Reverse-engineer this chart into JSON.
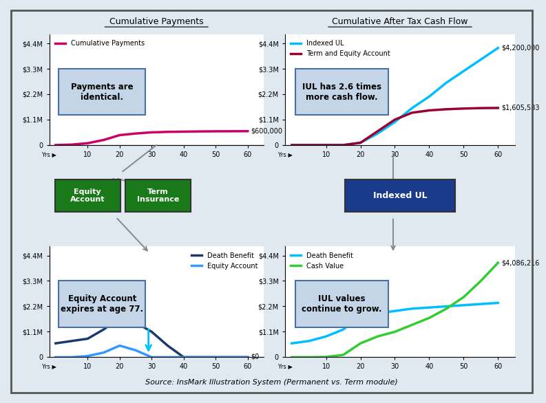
{
  "fig_width": 7.69,
  "fig_height": 5.66,
  "background_color": "#e0e8f0",
  "top_left_title": "Cumulative Payments",
  "top_right_title": "Cumulative After Tax Cash Flow",
  "bottom_source": "Source: InsMark Illustration System (Permanent vs. Term module)",
  "cum_pay_x": [
    0,
    5,
    10,
    15,
    20,
    25,
    30,
    35,
    40,
    45,
    50,
    55,
    60
  ],
  "cum_pay_y": [
    0,
    20000,
    80000,
    220000,
    430000,
    500000,
    550000,
    570000,
    580000,
    590000,
    595000,
    598000,
    600000
  ],
  "cum_pay_color": "#cc0066",
  "cum_pay_label": "Cumulative Payments",
  "cum_pay_end_label": "$600,000",
  "iul_cashflow_x": [
    0,
    5,
    10,
    15,
    20,
    25,
    30,
    35,
    40,
    45,
    50,
    55,
    60
  ],
  "iul_cashflow_y": [
    0,
    0,
    0,
    0,
    100000,
    500000,
    1000000,
    1600000,
    2100000,
    2700000,
    3200000,
    3700000,
    4200000
  ],
  "iul_cashflow_color": "#00bfff",
  "iul_cashflow_label": "Indexed UL",
  "iul_cashflow_end_label": "$4,200,000",
  "term_cashflow_x": [
    0,
    5,
    10,
    15,
    20,
    25,
    30,
    35,
    40,
    45,
    50,
    55,
    60
  ],
  "term_cashflow_y": [
    0,
    0,
    0,
    0,
    100000,
    600000,
    1100000,
    1400000,
    1500000,
    1550000,
    1580000,
    1600000,
    1605583
  ],
  "term_cashflow_color": "#990033",
  "term_cashflow_label": "Term and Equity Account",
  "term_cashflow_end_label": "$1,605,583",
  "bl_db_x": [
    0,
    5,
    10,
    15,
    20,
    25,
    30,
    35,
    40,
    45,
    50,
    55,
    60
  ],
  "bl_db_y": [
    600000,
    700000,
    800000,
    1200000,
    1700000,
    1500000,
    1100000,
    500000,
    0,
    0,
    0,
    0,
    0
  ],
  "bl_db_color": "#1a3a6b",
  "bl_db_label": "Death Benefit",
  "bl_eq_x": [
    0,
    5,
    10,
    15,
    20,
    25,
    30,
    35,
    40,
    45,
    50,
    55,
    60
  ],
  "bl_eq_y": [
    0,
    0,
    50000,
    200000,
    500000,
    300000,
    0,
    0,
    0,
    0,
    0,
    0,
    0
  ],
  "bl_eq_color": "#3399ff",
  "bl_eq_label": "Equity Account",
  "bl_eq_end_label": "$0",
  "br_db_x": [
    0,
    5,
    10,
    15,
    20,
    25,
    30,
    35,
    40,
    45,
    50,
    55,
    60
  ],
  "br_db_y": [
    600000,
    700000,
    900000,
    1200000,
    1800000,
    1900000,
    2000000,
    2100000,
    2150000,
    2200000,
    2250000,
    2300000,
    2350000
  ],
  "br_db_color": "#00bfff",
  "br_db_label": "Death Benefit",
  "br_cv_x": [
    0,
    5,
    10,
    15,
    20,
    25,
    30,
    35,
    40,
    45,
    50,
    55,
    60
  ],
  "br_cv_y": [
    0,
    0,
    10000,
    100000,
    600000,
    900000,
    1100000,
    1400000,
    1700000,
    2100000,
    2600000,
    3300000,
    4086216
  ],
  "br_cv_color": "#33cc33",
  "br_cv_label": "Cash Value",
  "br_cv_end_label": "$4,086,216",
  "yticks": [
    0,
    1100000,
    2200000,
    3300000,
    4400000
  ],
  "ytick_labels": [
    "0",
    "1.1M",
    "2.2M",
    "3.3M",
    "4.4M"
  ],
  "xticks": [
    10,
    20,
    30,
    40,
    50,
    60
  ],
  "ylim": [
    0,
    4800000
  ],
  "box_payments_text": "Payments are\nidentical.",
  "box_cashflow_text": "IUL has 2.6 times\nmore cash flow.",
  "box_equity_text": "Equity Account\nexpires at age 77.",
  "box_iul_text": "IUL values\ncontinue to grow.",
  "equity_account_box_color": "#1a7a1a",
  "term_insurance_box_color": "#1a7a1a",
  "indexed_ul_box_color": "#1a3a8a",
  "info_box_face": "#c5d5e8",
  "info_box_edge": "#4a6fa5"
}
